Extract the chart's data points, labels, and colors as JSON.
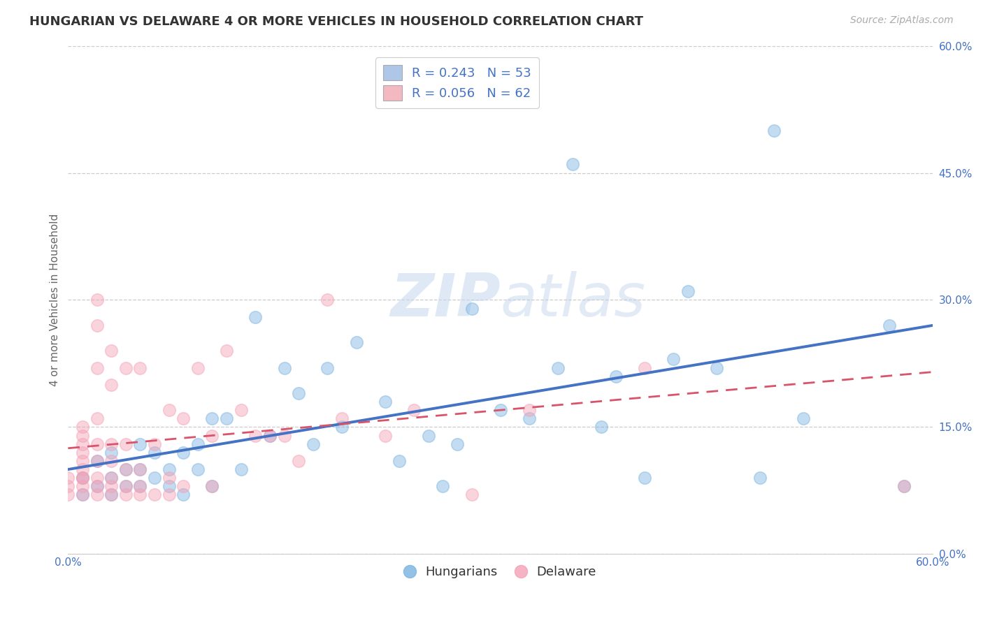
{
  "title": "HUNGARIAN VS DELAWARE 4 OR MORE VEHICLES IN HOUSEHOLD CORRELATION CHART",
  "source_text": "Source: ZipAtlas.com",
  "xlabel": "",
  "ylabel": "4 or more Vehicles in Household",
  "xlim": [
    0.0,
    0.6
  ],
  "ylim": [
    0.0,
    0.6
  ],
  "ytick_values": [
    0.0,
    0.15,
    0.3,
    0.45,
    0.6
  ],
  "grid_color": "#cccccc",
  "background_color": "#ffffff",
  "legend_labels": [
    "R = 0.243   N = 53",
    "R = 0.056   N = 62"
  ],
  "legend_colors": [
    "#aec6e8",
    "#f4b8c1"
  ],
  "blue_color": "#7ab3e0",
  "pink_color": "#f4a0b5",
  "blue_line_color": "#4472c4",
  "pink_line_color": "#d9536a",
  "watermark_zip": "ZIP",
  "watermark_atlas": "atlas",
  "blue_scatter_x": [
    0.01,
    0.01,
    0.02,
    0.02,
    0.03,
    0.03,
    0.03,
    0.04,
    0.04,
    0.05,
    0.05,
    0.05,
    0.06,
    0.06,
    0.07,
    0.07,
    0.08,
    0.08,
    0.09,
    0.09,
    0.1,
    0.1,
    0.11,
    0.12,
    0.13,
    0.14,
    0.15,
    0.16,
    0.17,
    0.18,
    0.19,
    0.2,
    0.22,
    0.23,
    0.25,
    0.26,
    0.27,
    0.28,
    0.3,
    0.32,
    0.34,
    0.35,
    0.37,
    0.38,
    0.4,
    0.42,
    0.43,
    0.45,
    0.48,
    0.49,
    0.51,
    0.57,
    0.58
  ],
  "blue_scatter_y": [
    0.07,
    0.09,
    0.08,
    0.11,
    0.09,
    0.07,
    0.12,
    0.1,
    0.08,
    0.1,
    0.08,
    0.13,
    0.09,
    0.12,
    0.1,
    0.08,
    0.12,
    0.07,
    0.1,
    0.13,
    0.16,
    0.08,
    0.16,
    0.1,
    0.28,
    0.14,
    0.22,
    0.19,
    0.13,
    0.22,
    0.15,
    0.25,
    0.18,
    0.11,
    0.14,
    0.08,
    0.13,
    0.29,
    0.17,
    0.16,
    0.22,
    0.46,
    0.15,
    0.21,
    0.09,
    0.23,
    0.31,
    0.22,
    0.09,
    0.5,
    0.16,
    0.27,
    0.08
  ],
  "pink_scatter_x": [
    0.0,
    0.0,
    0.0,
    0.01,
    0.01,
    0.01,
    0.01,
    0.01,
    0.01,
    0.01,
    0.01,
    0.01,
    0.01,
    0.02,
    0.02,
    0.02,
    0.02,
    0.02,
    0.02,
    0.02,
    0.02,
    0.02,
    0.03,
    0.03,
    0.03,
    0.03,
    0.03,
    0.03,
    0.03,
    0.04,
    0.04,
    0.04,
    0.04,
    0.04,
    0.05,
    0.05,
    0.05,
    0.05,
    0.06,
    0.06,
    0.07,
    0.07,
    0.07,
    0.08,
    0.08,
    0.09,
    0.1,
    0.1,
    0.11,
    0.12,
    0.13,
    0.14,
    0.15,
    0.16,
    0.18,
    0.19,
    0.22,
    0.24,
    0.28,
    0.32,
    0.4,
    0.58
  ],
  "pink_scatter_y": [
    0.07,
    0.08,
    0.09,
    0.07,
    0.08,
    0.09,
    0.1,
    0.12,
    0.13,
    0.14,
    0.15,
    0.09,
    0.11,
    0.07,
    0.08,
    0.09,
    0.11,
    0.13,
    0.16,
    0.22,
    0.27,
    0.3,
    0.07,
    0.08,
    0.09,
    0.11,
    0.13,
    0.2,
    0.24,
    0.07,
    0.08,
    0.1,
    0.13,
    0.22,
    0.07,
    0.08,
    0.1,
    0.22,
    0.07,
    0.13,
    0.07,
    0.09,
    0.17,
    0.08,
    0.16,
    0.22,
    0.08,
    0.14,
    0.24,
    0.17,
    0.14,
    0.14,
    0.14,
    0.11,
    0.3,
    0.16,
    0.14,
    0.17,
    0.07,
    0.17,
    0.22,
    0.08
  ],
  "blue_line_y_start": 0.1,
  "blue_line_y_end": 0.27,
  "pink_line_y_start": 0.125,
  "pink_line_y_end": 0.215,
  "title_fontsize": 13,
  "axis_label_fontsize": 11,
  "tick_fontsize": 11,
  "legend_fontsize": 13,
  "source_fontsize": 10
}
